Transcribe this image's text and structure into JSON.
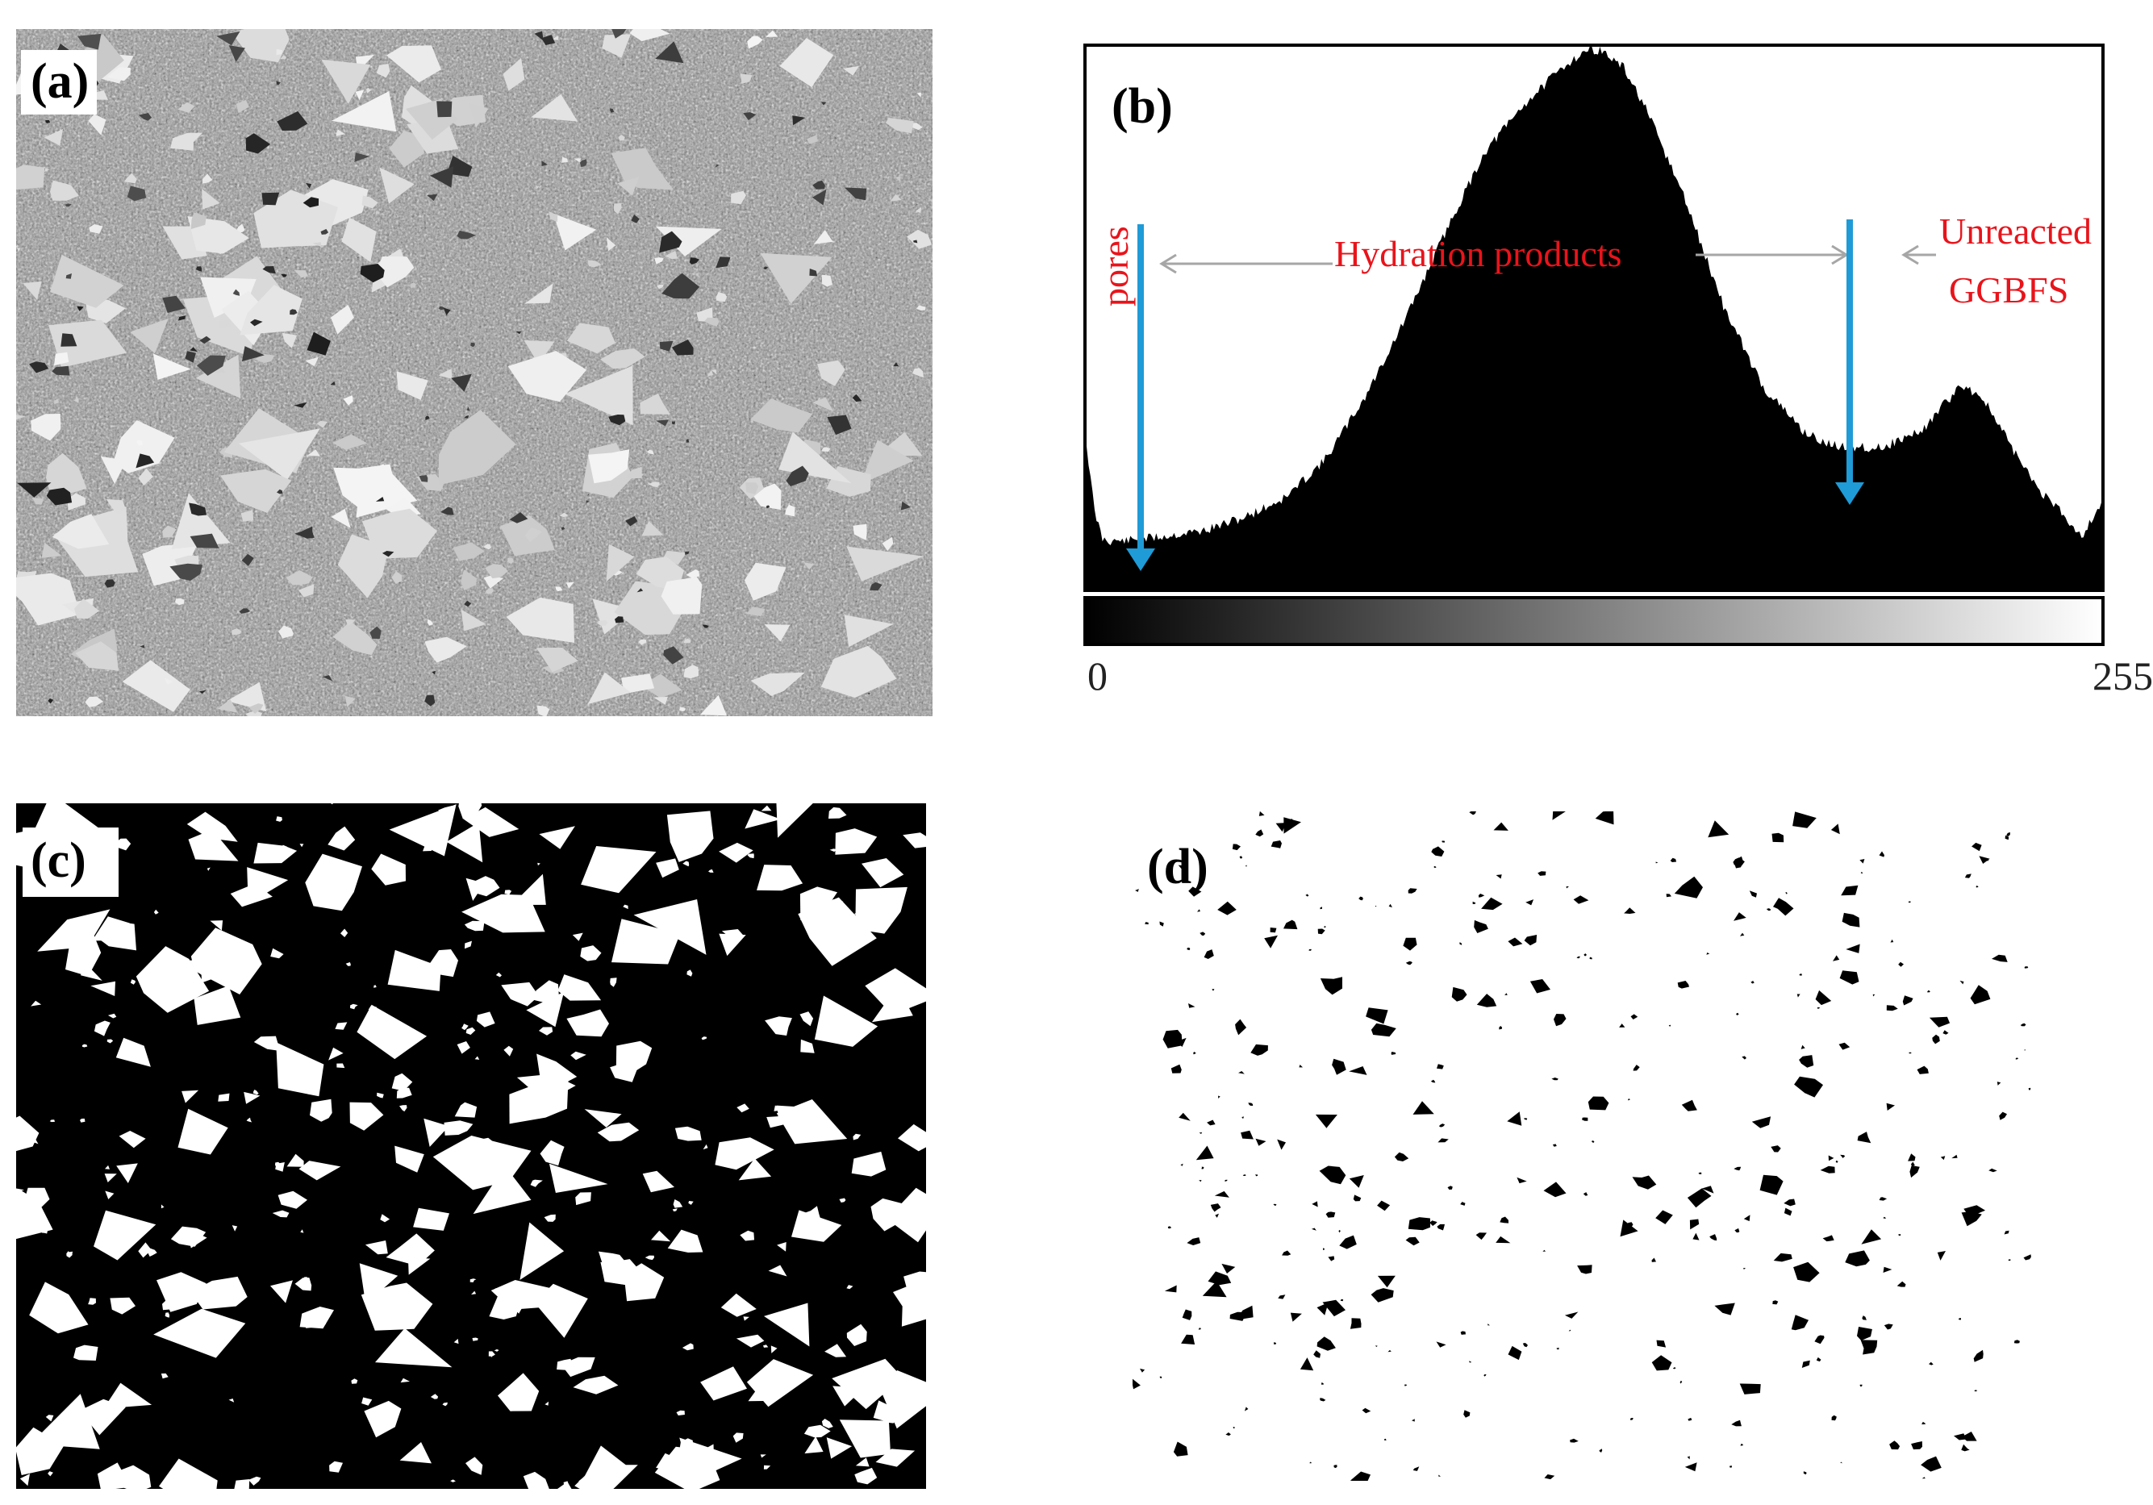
{
  "panels": {
    "a": {
      "label": "(a)"
    },
    "b": {
      "label": "(b)"
    },
    "c": {
      "label": "(c)"
    },
    "d": {
      "label": "(d)"
    }
  },
  "histogram": {
    "annotations": {
      "pores": "pores",
      "hydration": "Hydration products",
      "unreacted_line1": "Unreacted",
      "unreacted_line2": "GGBFS"
    },
    "axis_min": "0",
    "axis_max": "255",
    "colors": {
      "annotation_text": "#e8141b",
      "marker_arrow": "#1f9bd7",
      "guide_arrow": "#a6a6a6",
      "fill": "#000000"
    }
  },
  "chart_data": {
    "type": "area",
    "title": "",
    "xlabel": "",
    "ylabel": "",
    "xlim": [
      0,
      255
    ],
    "x": [
      0,
      2,
      4,
      6,
      8,
      10,
      15,
      20,
      30,
      40,
      50,
      60,
      70,
      80,
      90,
      100,
      110,
      120,
      125,
      128,
      130,
      135,
      140,
      150,
      160,
      170,
      180,
      185,
      190,
      200,
      210,
      215,
      220,
      225,
      230,
      235,
      240,
      245,
      250,
      253,
      255
    ],
    "values": [
      300,
      160,
      105,
      100,
      100,
      100,
      105,
      110,
      122,
      150,
      190,
      270,
      400,
      560,
      740,
      910,
      1010,
      1090,
      1120,
      1125,
      1118,
      1085,
      1010,
      820,
      590,
      420,
      330,
      305,
      295,
      295,
      330,
      380,
      425,
      400,
      330,
      260,
      200,
      160,
      110,
      150,
      180
    ],
    "markers": [
      {
        "label": "pores",
        "x": 12
      },
      {
        "label": "Unreacted GGBFS",
        "x": 193
      }
    ],
    "colorbar": "grayscale 0-255"
  }
}
